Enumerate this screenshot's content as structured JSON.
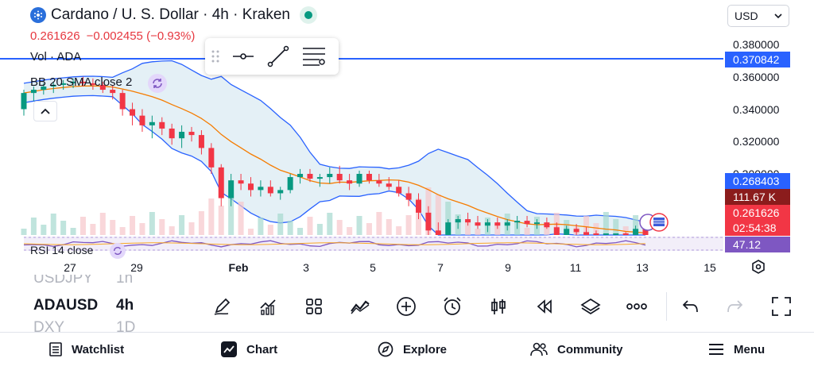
{
  "header": {
    "title": "Cardano / U. S. Dollar · 4h · Kraken",
    "price": "0.261626",
    "change": "−0.002455 (−0.93%)",
    "icons": [
      "cardano-symbol-icon",
      "market-live-icon"
    ]
  },
  "indicators": {
    "vol_label": "Vol · ADA",
    "bb_label": "BB 20 SMA close 2",
    "rsi_label": "RSI 14 close"
  },
  "currency": {
    "selected": "USD"
  },
  "price_axis": {
    "ticks": [
      "0.380000",
      "0.360000",
      "0.340000",
      "0.320000",
      "0.300000"
    ],
    "tags": {
      "line": "0.370842",
      "upper_band": "0.268403",
      "volume": "111.67 K",
      "last_price": "0.261626",
      "countdown": "02:54:38",
      "rsi": "47.12"
    }
  },
  "time_axis": {
    "ticks": [
      "27",
      "29",
      "Feb",
      "3",
      "5",
      "7",
      "9",
      "11",
      "13",
      "15"
    ]
  },
  "symbols": [
    "USDJPY",
    "ADAUSD",
    "DXY"
  ],
  "symbol_values": [
    "1h",
    "4h",
    "1D"
  ],
  "toolbar_icons": [
    "draw-pencil-icon",
    "indicators-icon",
    "templates-grid-icon",
    "trend-lines-icon",
    "add-icon",
    "alert-clock-icon",
    "candles-icon",
    "replay-icon",
    "layers-icon",
    "more-icon",
    "undo-icon",
    "redo-icon",
    "fullscreen-icon"
  ],
  "nav": {
    "watchlist": "Watchlist",
    "chart": "Chart",
    "explore": "Explore",
    "community": "Community",
    "menu": "Menu"
  },
  "colors": {
    "up": "#089981",
    "down": "#f23645",
    "accent": "#2962ff",
    "bb_fill": "#e3f0f7",
    "bb_mid": "#f57c00",
    "rsi": "#7e57c2"
  },
  "chart_data": {
    "type": "candlestick",
    "interval": "4h",
    "price_range": [
      0.255,
      0.39
    ],
    "horizontal_line": 0.370842,
    "candles": [
      [
        0.34,
        0.352,
        0.336,
        0.35
      ],
      [
        0.35,
        0.354,
        0.345,
        0.352
      ],
      [
        0.352,
        0.356,
        0.349,
        0.354
      ],
      [
        0.354,
        0.357,
        0.35,
        0.355
      ],
      [
        0.355,
        0.358,
        0.352,
        0.356
      ],
      [
        0.356,
        0.359,
        0.353,
        0.357
      ],
      [
        0.357,
        0.36,
        0.354,
        0.356
      ],
      [
        0.356,
        0.359,
        0.352,
        0.355
      ],
      [
        0.355,
        0.357,
        0.35,
        0.352
      ],
      [
        0.352,
        0.355,
        0.346,
        0.35
      ],
      [
        0.35,
        0.352,
        0.336,
        0.34
      ],
      [
        0.34,
        0.344,
        0.33,
        0.336
      ],
      [
        0.336,
        0.34,
        0.326,
        0.33
      ],
      [
        0.33,
        0.336,
        0.322,
        0.332
      ],
      [
        0.332,
        0.335,
        0.324,
        0.328
      ],
      [
        0.328,
        0.331,
        0.318,
        0.322
      ],
      [
        0.322,
        0.33,
        0.316,
        0.326
      ],
      [
        0.326,
        0.329,
        0.32,
        0.324
      ],
      [
        0.324,
        0.327,
        0.312,
        0.316
      ],
      [
        0.316,
        0.319,
        0.3,
        0.304
      ],
      [
        0.304,
        0.306,
        0.28,
        0.285
      ],
      [
        0.285,
        0.3,
        0.28,
        0.296
      ],
      [
        0.296,
        0.3,
        0.29,
        0.294
      ],
      [
        0.294,
        0.298,
        0.286,
        0.29
      ],
      [
        0.29,
        0.296,
        0.286,
        0.292
      ],
      [
        0.292,
        0.296,
        0.286,
        0.288
      ],
      [
        0.288,
        0.292,
        0.284,
        0.29
      ],
      [
        0.29,
        0.3,
        0.288,
        0.298
      ],
      [
        0.298,
        0.303,
        0.294,
        0.3
      ],
      [
        0.3,
        0.303,
        0.295,
        0.297
      ],
      [
        0.297,
        0.3,
        0.292,
        0.298
      ],
      [
        0.298,
        0.304,
        0.294,
        0.3
      ],
      [
        0.3,
        0.305,
        0.294,
        0.296
      ],
      [
        0.296,
        0.3,
        0.29,
        0.294
      ],
      [
        0.294,
        0.302,
        0.292,
        0.3
      ],
      [
        0.3,
        0.302,
        0.294,
        0.296
      ],
      [
        0.296,
        0.3,
        0.292,
        0.294
      ],
      [
        0.294,
        0.298,
        0.29,
        0.292
      ],
      [
        0.292,
        0.296,
        0.286,
        0.288
      ],
      [
        0.288,
        0.292,
        0.28,
        0.284
      ],
      [
        0.284,
        0.288,
        0.272,
        0.276
      ],
      [
        0.276,
        0.28,
        0.262,
        0.265
      ],
      [
        0.265,
        0.27,
        0.256,
        0.26
      ],
      [
        0.26,
        0.272,
        0.258,
        0.27
      ],
      [
        0.27,
        0.274,
        0.266,
        0.272
      ],
      [
        0.272,
        0.276,
        0.268,
        0.27
      ],
      [
        0.27,
        0.274,
        0.266,
        0.268
      ],
      [
        0.268,
        0.272,
        0.264,
        0.27
      ],
      [
        0.27,
        0.273,
        0.266,
        0.268
      ],
      [
        0.268,
        0.272,
        0.265,
        0.27
      ],
      [
        0.27,
        0.274,
        0.266,
        0.271
      ],
      [
        0.271,
        0.274,
        0.267,
        0.269
      ],
      [
        0.269,
        0.272,
        0.266,
        0.27
      ],
      [
        0.27,
        0.273,
        0.266,
        0.267
      ],
      [
        0.267,
        0.27,
        0.26,
        0.262
      ],
      [
        0.262,
        0.268,
        0.26,
        0.266
      ],
      [
        0.266,
        0.269,
        0.262,
        0.264
      ],
      [
        0.264,
        0.267,
        0.261,
        0.262
      ],
      [
        0.262,
        0.265,
        0.258,
        0.26
      ],
      [
        0.26,
        0.263,
        0.257,
        0.261
      ],
      [
        0.261,
        0.263,
        0.258,
        0.262
      ],
      [
        0.262,
        0.264,
        0.258,
        0.259
      ],
      [
        0.259,
        0.268,
        0.258,
        0.266
      ],
      [
        0.266,
        0.268,
        0.261,
        0.262
      ]
    ]
  }
}
